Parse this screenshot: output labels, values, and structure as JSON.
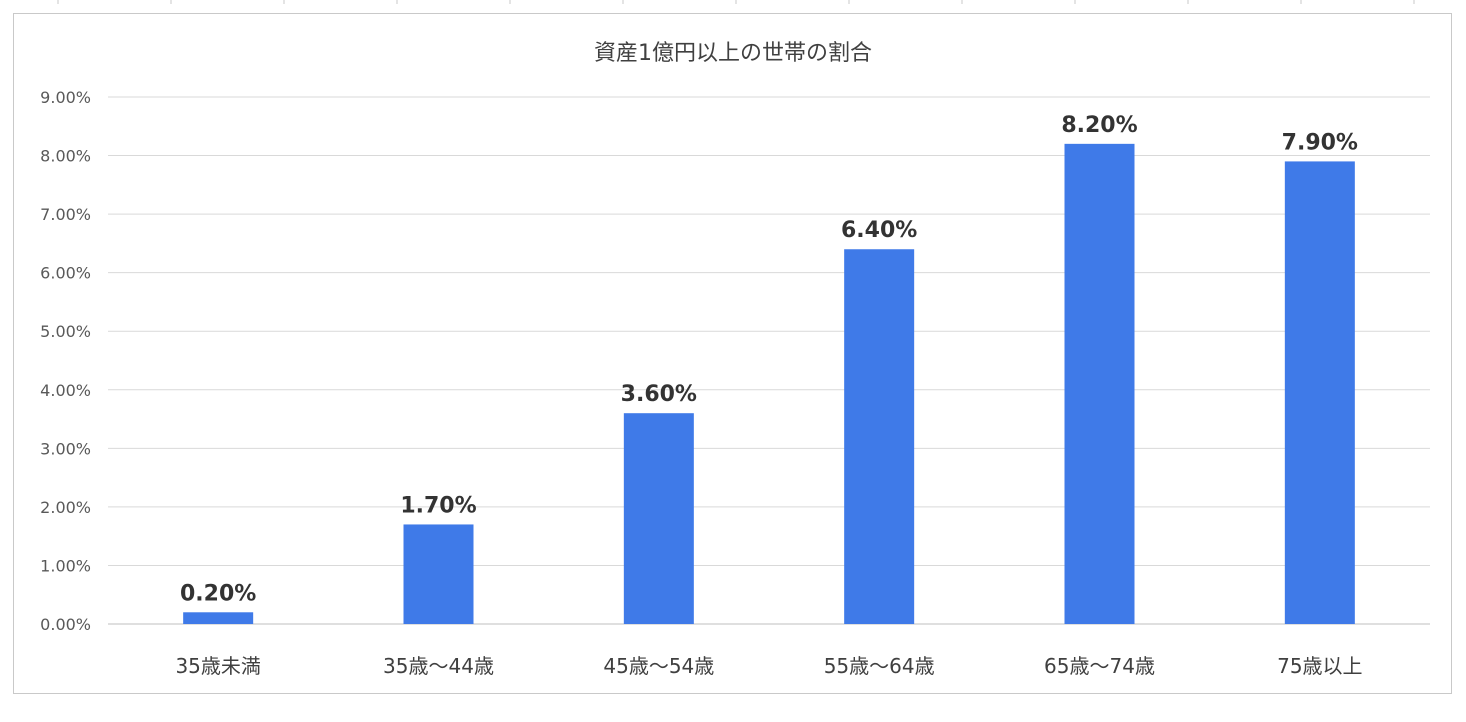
{
  "chart_data": {
    "type": "bar",
    "title": "資産1億円以上の世帯の割合",
    "categories": [
      "35歳未満",
      "35歳〜44歳",
      "45歳〜54歳",
      "55歳〜64歳",
      "65歳〜74歳",
      "75歳以上"
    ],
    "values": [
      0.2,
      1.7,
      3.6,
      6.4,
      8.2,
      7.9
    ],
    "data_labels": [
      "0.20%",
      "1.70%",
      "3.60%",
      "6.40%",
      "8.20%",
      "7.90%"
    ],
    "ylim": [
      0,
      9
    ],
    "yticks": [
      "0.00%",
      "1.00%",
      "2.00%",
      "3.00%",
      "4.00%",
      "5.00%",
      "6.00%",
      "7.00%",
      "8.00%",
      "9.00%"
    ],
    "xlabel": "",
    "ylabel": "",
    "grid": true,
    "legend": "none",
    "bar_color": "#3f7ae8"
  }
}
